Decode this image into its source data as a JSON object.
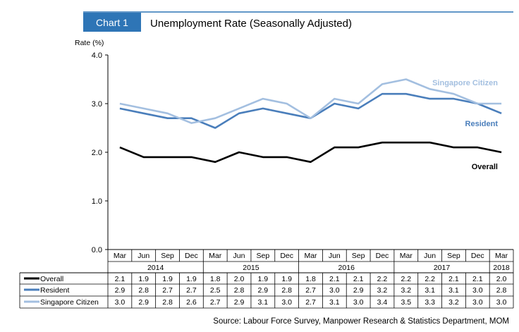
{
  "header": {
    "badge": "Chart 1",
    "title": "Unemployment Rate (Seasonally Adjusted)"
  },
  "colors": {
    "badge_bg": "#2E75B6",
    "overall": "#000000",
    "resident": "#4A7EBB",
    "citizen": "#A3BFE0",
    "resident_label": "#4A7EBB",
    "citizen_label": "#A3BFE0"
  },
  "chart_data": {
    "type": "line",
    "title": "Unemployment Rate (Seasonally Adjusted)",
    "ylabel": "Rate (%)",
    "ylim": [
      0,
      4
    ],
    "yticks": [
      "0.0",
      "1.0",
      "2.0",
      "3.0",
      "4.0"
    ],
    "grid": false,
    "categories": [
      "Mar",
      "Jun",
      "Sep",
      "Dec",
      "Mar",
      "Jun",
      "Sep",
      "Dec",
      "Mar",
      "Jun",
      "Sep",
      "Dec",
      "Mar",
      "Jun",
      "Sep",
      "Dec",
      "Mar"
    ],
    "years": [
      {
        "label": "2014",
        "span": 4
      },
      {
        "label": "2015",
        "span": 4
      },
      {
        "label": "2016",
        "span": 4
      },
      {
        "label": "2017",
        "span": 4
      },
      {
        "label": "2018",
        "span": 1
      }
    ],
    "series": [
      {
        "name": "Overall",
        "color": "#000000",
        "values": [
          2.1,
          1.9,
          1.9,
          1.9,
          1.8,
          2.0,
          1.9,
          1.9,
          1.8,
          2.1,
          2.1,
          2.2,
          2.2,
          2.2,
          2.1,
          2.1,
          2.0
        ],
        "table_values": [
          "2.1",
          "1.9",
          "1.9",
          "1.9",
          "1.8",
          "2.0",
          "1.9",
          "1.9",
          "1.8",
          "2.1",
          "2.1",
          "2.2",
          "2.2",
          "2.2",
          "2.1",
          "2.1",
          "2.0"
        ]
      },
      {
        "name": "Resident",
        "color": "#4A7EBB",
        "values": [
          2.9,
          2.8,
          2.7,
          2.7,
          2.5,
          2.8,
          2.9,
          2.8,
          2.7,
          3.0,
          2.9,
          3.2,
          3.2,
          3.1,
          3.1,
          3.0,
          2.8
        ],
        "table_values": [
          "2.9",
          "2.8",
          "2.7",
          "2.7",
          "2.5",
          "2.8",
          "2.9",
          "2.8",
          "2.7",
          "3.0",
          "2.9",
          "3.2",
          "3.2",
          "3.1",
          "3.1",
          "3.0",
          "2.8"
        ]
      },
      {
        "name": "Singapore Citizen",
        "color": "#A3BFE0",
        "values": [
          3.0,
          2.9,
          2.8,
          2.6,
          2.7,
          2.9,
          3.1,
          3.0,
          2.7,
          3.1,
          3.0,
          3.4,
          3.5,
          3.3,
          3.2,
          3.0,
          3.0
        ],
        "table_values": [
          "3.0",
          "2.9",
          "2.8",
          "2.6",
          "2.7",
          "2.9",
          "3.1",
          "3.0",
          "2.7",
          "3.1",
          "3.0",
          "3.4",
          "3.5",
          "3.3",
          "3.2",
          "3.0",
          "3.0"
        ]
      }
    ],
    "annotations": {
      "citizen": "Singapore Citizen",
      "resident": "Resident",
      "overall": "Overall"
    }
  },
  "source": "Source: Labour Force Survey, Manpower Research & Statistics Department, MOM"
}
